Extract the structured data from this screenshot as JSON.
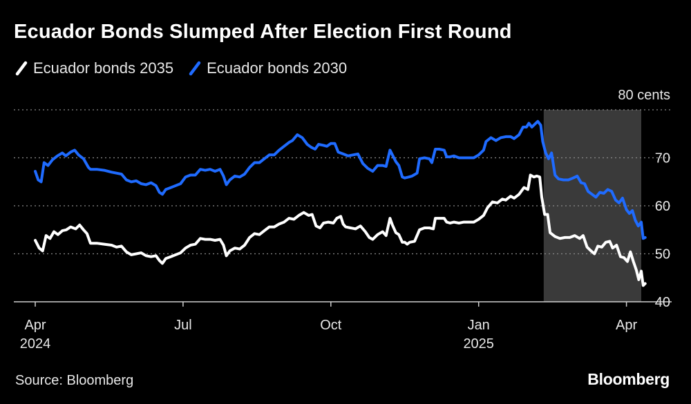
{
  "chart_data": {
    "type": "line",
    "title": "Ecuador Bonds Slumped After Election First Round",
    "xlabel": "",
    "ylabel": "cents",
    "unit_label": "80 cents",
    "ylim": [
      40,
      80
    ],
    "yticks": [
      40,
      50,
      60,
      70
    ],
    "xlim": [
      0,
      12.5
    ],
    "x_ticks": [
      {
        "x": 0,
        "label": "Apr",
        "sublabel": "2024"
      },
      {
        "x": 3,
        "label": "Jul",
        "sublabel": ""
      },
      {
        "x": 6,
        "label": "Oct",
        "sublabel": ""
      },
      {
        "x": 9,
        "label": "Jan",
        "sublabel": "2025"
      },
      {
        "x": 12,
        "label": "Apr",
        "sublabel": ""
      }
    ],
    "shaded_region": {
      "x_start": 10.32,
      "x_end": 12.3,
      "color": "#3a3a3a"
    },
    "source": "Source: Bloomberg",
    "brand": "Bloomberg",
    "series": [
      {
        "name": "Ecuador bonds 2035",
        "color": "#ffffff",
        "points": [
          [
            0.0,
            52.8
          ],
          [
            0.08,
            51.2
          ],
          [
            0.15,
            50.6
          ],
          [
            0.22,
            53.8
          ],
          [
            0.3,
            53.2
          ],
          [
            0.38,
            54.6
          ],
          [
            0.46,
            54.0
          ],
          [
            0.55,
            54.8
          ],
          [
            0.63,
            55.0
          ],
          [
            0.72,
            55.6
          ],
          [
            0.82,
            55.2
          ],
          [
            0.9,
            56.0
          ],
          [
            0.98,
            55.0
          ],
          [
            1.05,
            54.2
          ],
          [
            1.12,
            52.2
          ],
          [
            1.25,
            52.2
          ],
          [
            1.4,
            52.0
          ],
          [
            1.55,
            51.8
          ],
          [
            1.65,
            51.4
          ],
          [
            1.75,
            51.6
          ],
          [
            1.85,
            50.4
          ],
          [
            1.95,
            49.8
          ],
          [
            2.05,
            50.0
          ],
          [
            2.15,
            50.2
          ],
          [
            2.25,
            49.6
          ],
          [
            2.35,
            49.4
          ],
          [
            2.45,
            49.6
          ],
          [
            2.52,
            48.6
          ],
          [
            2.58,
            48.0
          ],
          [
            2.65,
            49.0
          ],
          [
            2.75,
            49.4
          ],
          [
            2.85,
            49.8
          ],
          [
            2.95,
            50.2
          ],
          [
            3.05,
            51.2
          ],
          [
            3.15,
            51.8
          ],
          [
            3.25,
            52.0
          ],
          [
            3.35,
            53.2
          ],
          [
            3.45,
            53.0
          ],
          [
            3.55,
            53.0
          ],
          [
            3.65,
            52.8
          ],
          [
            3.75,
            53.0
          ],
          [
            3.82,
            51.8
          ],
          [
            3.88,
            49.6
          ],
          [
            3.95,
            50.6
          ],
          [
            4.05,
            51.2
          ],
          [
            4.15,
            51.0
          ],
          [
            4.25,
            51.8
          ],
          [
            4.35,
            53.4
          ],
          [
            4.45,
            54.2
          ],
          [
            4.55,
            54.0
          ],
          [
            4.65,
            54.8
          ],
          [
            4.75,
            55.6
          ],
          [
            4.85,
            55.6
          ],
          [
            4.95,
            56.2
          ],
          [
            5.05,
            56.6
          ],
          [
            5.15,
            57.4
          ],
          [
            5.25,
            57.2
          ],
          [
            5.35,
            58.0
          ],
          [
            5.45,
            58.6
          ],
          [
            5.55,
            58.0
          ],
          [
            5.62,
            58.2
          ],
          [
            5.7,
            55.8
          ],
          [
            5.78,
            55.4
          ],
          [
            5.85,
            56.4
          ],
          [
            5.95,
            56.6
          ],
          [
            6.05,
            56.4
          ],
          [
            6.12,
            57.4
          ],
          [
            6.2,
            57.8
          ],
          [
            6.25,
            56.2
          ],
          [
            6.3,
            55.6
          ],
          [
            6.4,
            55.4
          ],
          [
            6.5,
            55.2
          ],
          [
            6.6,
            55.8
          ],
          [
            6.7,
            54.6
          ],
          [
            6.78,
            53.4
          ],
          [
            6.85,
            53.0
          ],
          [
            6.95,
            54.0
          ],
          [
            7.05,
            54.6
          ],
          [
            7.12,
            53.8
          ],
          [
            7.2,
            57.4
          ],
          [
            7.25,
            56.0
          ],
          [
            7.32,
            54.4
          ],
          [
            7.38,
            54.0
          ],
          [
            7.45,
            52.4
          ],
          [
            7.5,
            52.4
          ],
          [
            7.55,
            52.0
          ],
          [
            7.6,
            52.4
          ],
          [
            7.7,
            52.6
          ],
          [
            7.8,
            55.0
          ],
          [
            7.9,
            55.4
          ],
          [
            8.0,
            55.4
          ],
          [
            8.08,
            55.2
          ],
          [
            8.12,
            57.4
          ],
          [
            8.2,
            57.4
          ],
          [
            8.3,
            57.4
          ],
          [
            8.35,
            56.6
          ],
          [
            8.42,
            56.4
          ],
          [
            8.5,
            56.6
          ],
          [
            8.6,
            56.4
          ],
          [
            8.7,
            56.6
          ],
          [
            8.8,
            56.6
          ],
          [
            8.9,
            56.6
          ],
          [
            9.0,
            57.2
          ],
          [
            9.1,
            58.0
          ],
          [
            9.18,
            59.6
          ],
          [
            9.28,
            60.8
          ],
          [
            9.38,
            60.6
          ],
          [
            9.48,
            61.4
          ],
          [
            9.55,
            61.2
          ],
          [
            9.65,
            62.0
          ],
          [
            9.72,
            61.6
          ],
          [
            9.82,
            62.4
          ],
          [
            9.92,
            63.8
          ],
          [
            10.0,
            63.4
          ],
          [
            10.05,
            66.4
          ],
          [
            10.12,
            66.0
          ],
          [
            10.18,
            66.2
          ],
          [
            10.24,
            66.0
          ],
          [
            10.28,
            61.8
          ],
          [
            10.34,
            58.2
          ],
          [
            10.4,
            58.2
          ],
          [
            10.45,
            54.4
          ],
          [
            10.55,
            53.6
          ],
          [
            10.65,
            53.2
          ],
          [
            10.75,
            53.4
          ],
          [
            10.85,
            53.4
          ],
          [
            10.95,
            53.8
          ],
          [
            11.05,
            53.2
          ],
          [
            11.12,
            53.8
          ],
          [
            11.2,
            51.4
          ],
          [
            11.28,
            50.6
          ],
          [
            11.35,
            50.0
          ],
          [
            11.42,
            51.6
          ],
          [
            11.5,
            51.4
          ],
          [
            11.58,
            52.4
          ],
          [
            11.66,
            52.6
          ],
          [
            11.72,
            51.2
          ],
          [
            11.8,
            51.8
          ],
          [
            11.88,
            49.4
          ],
          [
            11.95,
            49.2
          ],
          [
            12.02,
            48.4
          ],
          [
            12.08,
            50.4
          ],
          [
            12.14,
            48.4
          ],
          [
            12.2,
            46.6
          ],
          [
            12.25,
            44.6
          ],
          [
            12.3,
            46.4
          ],
          [
            12.34,
            43.4
          ],
          [
            12.38,
            43.8
          ]
        ]
      },
      {
        "name": "Ecuador bonds 2030",
        "color": "#1f6bff",
        "points": [
          [
            0.0,
            67.2
          ],
          [
            0.06,
            65.4
          ],
          [
            0.12,
            65.0
          ],
          [
            0.18,
            69.0
          ],
          [
            0.26,
            68.4
          ],
          [
            0.35,
            69.6
          ],
          [
            0.45,
            70.4
          ],
          [
            0.55,
            71.0
          ],
          [
            0.62,
            70.4
          ],
          [
            0.72,
            71.2
          ],
          [
            0.8,
            71.6
          ],
          [
            0.88,
            70.6
          ],
          [
            0.98,
            69.8
          ],
          [
            1.08,
            68.0
          ],
          [
            1.12,
            67.6
          ],
          [
            1.25,
            67.6
          ],
          [
            1.4,
            67.4
          ],
          [
            1.55,
            67.0
          ],
          [
            1.65,
            66.8
          ],
          [
            1.75,
            66.6
          ],
          [
            1.85,
            65.4
          ],
          [
            1.95,
            65.0
          ],
          [
            2.05,
            65.2
          ],
          [
            2.15,
            64.6
          ],
          [
            2.25,
            64.4
          ],
          [
            2.35,
            64.8
          ],
          [
            2.45,
            64.2
          ],
          [
            2.52,
            62.8
          ],
          [
            2.58,
            62.4
          ],
          [
            2.65,
            63.4
          ],
          [
            2.75,
            63.8
          ],
          [
            2.85,
            64.2
          ],
          [
            2.95,
            64.6
          ],
          [
            3.05,
            66.0
          ],
          [
            3.15,
            66.4
          ],
          [
            3.25,
            66.4
          ],
          [
            3.35,
            67.6
          ],
          [
            3.45,
            67.4
          ],
          [
            3.55,
            67.6
          ],
          [
            3.65,
            67.2
          ],
          [
            3.75,
            67.6
          ],
          [
            3.82,
            66.2
          ],
          [
            3.88,
            64.4
          ],
          [
            3.95,
            65.4
          ],
          [
            4.05,
            66.2
          ],
          [
            4.15,
            66.0
          ],
          [
            4.25,
            66.6
          ],
          [
            4.35,
            68.0
          ],
          [
            4.45,
            69.0
          ],
          [
            4.55,
            69.0
          ],
          [
            4.65,
            69.8
          ],
          [
            4.75,
            70.6
          ],
          [
            4.85,
            70.6
          ],
          [
            4.95,
            71.6
          ],
          [
            5.05,
            72.4
          ],
          [
            5.15,
            73.2
          ],
          [
            5.22,
            73.6
          ],
          [
            5.32,
            74.8
          ],
          [
            5.42,
            74.2
          ],
          [
            5.52,
            72.8
          ],
          [
            5.6,
            72.2
          ],
          [
            5.68,
            71.8
          ],
          [
            5.75,
            72.8
          ],
          [
            5.85,
            72.6
          ],
          [
            5.92,
            72.4
          ],
          [
            6.0,
            73.0
          ],
          [
            6.08,
            73.0
          ],
          [
            6.15,
            71.2
          ],
          [
            6.25,
            70.8
          ],
          [
            6.35,
            70.4
          ],
          [
            6.45,
            70.6
          ],
          [
            6.55,
            70.8
          ],
          [
            6.65,
            68.8
          ],
          [
            6.75,
            67.8
          ],
          [
            6.85,
            67.2
          ],
          [
            6.95,
            68.4
          ],
          [
            7.05,
            68.4
          ],
          [
            7.12,
            68.2
          ],
          [
            7.2,
            71.6
          ],
          [
            7.26,
            70.4
          ],
          [
            7.32,
            69.2
          ],
          [
            7.38,
            68.4
          ],
          [
            7.45,
            66.0
          ],
          [
            7.5,
            65.8
          ],
          [
            7.58,
            66.0
          ],
          [
            7.65,
            66.2
          ],
          [
            7.75,
            66.8
          ],
          [
            7.8,
            69.8
          ],
          [
            7.9,
            70.0
          ],
          [
            8.0,
            69.8
          ],
          [
            8.05,
            69.0
          ],
          [
            8.12,
            71.8
          ],
          [
            8.2,
            71.8
          ],
          [
            8.3,
            71.6
          ],
          [
            8.35,
            70.2
          ],
          [
            8.42,
            70.2
          ],
          [
            8.5,
            70.4
          ],
          [
            8.6,
            70.0
          ],
          [
            8.7,
            70.0
          ],
          [
            8.8,
            70.0
          ],
          [
            8.9,
            70.0
          ],
          [
            9.0,
            70.6
          ],
          [
            9.1,
            71.6
          ],
          [
            9.15,
            73.4
          ],
          [
            9.25,
            74.2
          ],
          [
            9.35,
            73.6
          ],
          [
            9.45,
            74.2
          ],
          [
            9.55,
            74.4
          ],
          [
            9.65,
            74.4
          ],
          [
            9.72,
            74.0
          ],
          [
            9.82,
            74.8
          ],
          [
            9.9,
            76.4
          ],
          [
            9.97,
            76.4
          ],
          [
            10.02,
            77.2
          ],
          [
            10.08,
            76.4
          ],
          [
            10.14,
            77.0
          ],
          [
            10.2,
            77.6
          ],
          [
            10.26,
            76.8
          ],
          [
            10.3,
            73.4
          ],
          [
            10.36,
            71.0
          ],
          [
            10.42,
            69.8
          ],
          [
            10.48,
            71.0
          ],
          [
            10.55,
            66.4
          ],
          [
            10.62,
            65.6
          ],
          [
            10.72,
            65.4
          ],
          [
            10.82,
            65.4
          ],
          [
            10.92,
            65.8
          ],
          [
            11.0,
            66.2
          ],
          [
            11.08,
            64.8
          ],
          [
            11.15,
            64.6
          ],
          [
            11.22,
            63.0
          ],
          [
            11.3,
            62.4
          ],
          [
            11.38,
            61.8
          ],
          [
            11.46,
            62.8
          ],
          [
            11.54,
            62.6
          ],
          [
            11.62,
            63.4
          ],
          [
            11.7,
            63.0
          ],
          [
            11.78,
            61.2
          ],
          [
            11.85,
            60.6
          ],
          [
            11.92,
            61.6
          ],
          [
            12.0,
            59.2
          ],
          [
            12.06,
            58.4
          ],
          [
            12.12,
            59.0
          ],
          [
            12.18,
            57.0
          ],
          [
            12.24,
            55.8
          ],
          [
            12.3,
            56.6
          ],
          [
            12.34,
            53.2
          ],
          [
            12.38,
            53.4
          ]
        ]
      }
    ]
  }
}
